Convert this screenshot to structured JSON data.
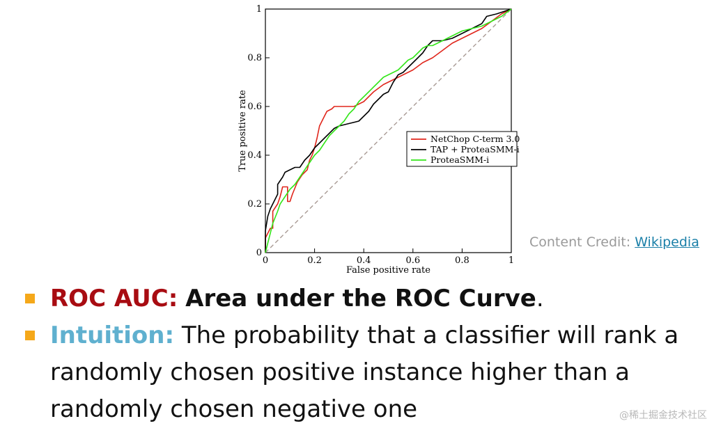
{
  "chart_data": {
    "type": "line",
    "xlabel": "False positive rate",
    "ylabel": "True positive rate",
    "xlim": [
      0,
      1
    ],
    "ylim": [
      0,
      1
    ],
    "x_ticks": [
      "0",
      "0.2",
      "0.4",
      "0.6",
      "0.8",
      "1"
    ],
    "y_ticks": [
      "0",
      "0.2",
      "0.4",
      "0.6",
      "0.8",
      "1"
    ],
    "grid": false,
    "legend_position": "center-right",
    "diagonal": {
      "style": "dashed",
      "color": "#a89a94",
      "points": [
        [
          0,
          0
        ],
        [
          1,
          1
        ]
      ]
    },
    "series": [
      {
        "name": "NetChop C-term 3.0",
        "color": "#e0261c",
        "points": [
          [
            0,
            0
          ],
          [
            0,
            0.06
          ],
          [
            0.02,
            0.1
          ],
          [
            0.03,
            0.1
          ],
          [
            0.03,
            0.17
          ],
          [
            0.05,
            0.2
          ],
          [
            0.06,
            0.23
          ],
          [
            0.07,
            0.27
          ],
          [
            0.09,
            0.27
          ],
          [
            0.09,
            0.21
          ],
          [
            0.1,
            0.21
          ],
          [
            0.11,
            0.24
          ],
          [
            0.13,
            0.29
          ],
          [
            0.15,
            0.32
          ],
          [
            0.17,
            0.34
          ],
          [
            0.18,
            0.38
          ],
          [
            0.19,
            0.4
          ],
          [
            0.2,
            0.43
          ],
          [
            0.21,
            0.47
          ],
          [
            0.22,
            0.52
          ],
          [
            0.23,
            0.54
          ],
          [
            0.24,
            0.56
          ],
          [
            0.25,
            0.58
          ],
          [
            0.27,
            0.59
          ],
          [
            0.28,
            0.6
          ],
          [
            0.32,
            0.6
          ],
          [
            0.36,
            0.6
          ],
          [
            0.38,
            0.61
          ],
          [
            0.4,
            0.62
          ],
          [
            0.44,
            0.66
          ],
          [
            0.48,
            0.69
          ],
          [
            0.52,
            0.71
          ],
          [
            0.56,
            0.73
          ],
          [
            0.6,
            0.75
          ],
          [
            0.64,
            0.78
          ],
          [
            0.68,
            0.8
          ],
          [
            0.72,
            0.83
          ],
          [
            0.76,
            0.86
          ],
          [
            0.8,
            0.88
          ],
          [
            0.84,
            0.9
          ],
          [
            0.88,
            0.92
          ],
          [
            0.92,
            0.95
          ],
          [
            0.96,
            0.98
          ],
          [
            1,
            1
          ]
        ]
      },
      {
        "name": "TAP + ProteaSMM-i",
        "color": "#000000",
        "points": [
          [
            0,
            0
          ],
          [
            0,
            0.09
          ],
          [
            0.01,
            0.15
          ],
          [
            0.02,
            0.18
          ],
          [
            0.03,
            0.2
          ],
          [
            0.04,
            0.22
          ],
          [
            0.05,
            0.24
          ],
          [
            0.05,
            0.28
          ],
          [
            0.07,
            0.31
          ],
          [
            0.08,
            0.33
          ],
          [
            0.1,
            0.34
          ],
          [
            0.12,
            0.35
          ],
          [
            0.14,
            0.35
          ],
          [
            0.16,
            0.38
          ],
          [
            0.18,
            0.4
          ],
          [
            0.2,
            0.43
          ],
          [
            0.22,
            0.45
          ],
          [
            0.24,
            0.47
          ],
          [
            0.26,
            0.49
          ],
          [
            0.28,
            0.51
          ],
          [
            0.3,
            0.52
          ],
          [
            0.34,
            0.53
          ],
          [
            0.38,
            0.54
          ],
          [
            0.4,
            0.56
          ],
          [
            0.42,
            0.58
          ],
          [
            0.44,
            0.61
          ],
          [
            0.46,
            0.63
          ],
          [
            0.48,
            0.65
          ],
          [
            0.5,
            0.66
          ],
          [
            0.52,
            0.7
          ],
          [
            0.54,
            0.73
          ],
          [
            0.56,
            0.74
          ],
          [
            0.58,
            0.76
          ],
          [
            0.6,
            0.78
          ],
          [
            0.62,
            0.8
          ],
          [
            0.64,
            0.82
          ],
          [
            0.66,
            0.85
          ],
          [
            0.68,
            0.87
          ],
          [
            0.72,
            0.87
          ],
          [
            0.76,
            0.88
          ],
          [
            0.8,
            0.9
          ],
          [
            0.84,
            0.92
          ],
          [
            0.88,
            0.94
          ],
          [
            0.9,
            0.97
          ],
          [
            0.94,
            0.98
          ],
          [
            0.97,
            0.99
          ],
          [
            1,
            1
          ]
        ]
      },
      {
        "name": "ProteaSMM-i",
        "color": "#33e61a",
        "points": [
          [
            0,
            0
          ],
          [
            0.01,
            0.04
          ],
          [
            0.02,
            0.08
          ],
          [
            0.03,
            0.12
          ],
          [
            0.05,
            0.17
          ],
          [
            0.06,
            0.2
          ],
          [
            0.08,
            0.23
          ],
          [
            0.1,
            0.26
          ],
          [
            0.12,
            0.28
          ],
          [
            0.14,
            0.31
          ],
          [
            0.16,
            0.34
          ],
          [
            0.18,
            0.37
          ],
          [
            0.2,
            0.4
          ],
          [
            0.22,
            0.42
          ],
          [
            0.24,
            0.45
          ],
          [
            0.26,
            0.48
          ],
          [
            0.28,
            0.5
          ],
          [
            0.3,
            0.52
          ],
          [
            0.32,
            0.54
          ],
          [
            0.34,
            0.57
          ],
          [
            0.36,
            0.59
          ],
          [
            0.38,
            0.62
          ],
          [
            0.4,
            0.64
          ],
          [
            0.42,
            0.66
          ],
          [
            0.44,
            0.68
          ],
          [
            0.46,
            0.7
          ],
          [
            0.48,
            0.72
          ],
          [
            0.5,
            0.73
          ],
          [
            0.52,
            0.74
          ],
          [
            0.54,
            0.75
          ],
          [
            0.56,
            0.77
          ],
          [
            0.58,
            0.79
          ],
          [
            0.6,
            0.8
          ],
          [
            0.62,
            0.82
          ],
          [
            0.64,
            0.84
          ],
          [
            0.66,
            0.85
          ],
          [
            0.68,
            0.85
          ],
          [
            0.7,
            0.86
          ],
          [
            0.72,
            0.87
          ],
          [
            0.74,
            0.88
          ],
          [
            0.76,
            0.89
          ],
          [
            0.78,
            0.9
          ],
          [
            0.8,
            0.91
          ],
          [
            0.84,
            0.92
          ],
          [
            0.88,
            0.93
          ],
          [
            0.92,
            0.95
          ],
          [
            0.96,
            0.97
          ],
          [
            1,
            1
          ]
        ]
      }
    ]
  },
  "credit": {
    "prefix": "Content Credit: ",
    "link_text": "Wikipedia"
  },
  "bullets": {
    "b1": {
      "keyword": "ROC AUC:",
      "strong_text": "Area under the ROC Curve",
      "tail": "."
    },
    "b2": {
      "keyword": "Intuition:",
      "text": "The probability that a classifier will rank a randomly chosen positive instance higher than a randomly chosen negative one"
    }
  },
  "watermark": "@稀土掘金技术社区",
  "colors": {
    "bullet_square": "#f5a81a",
    "keyword_red": "#a80c12",
    "keyword_blue": "#5fb0cf"
  }
}
